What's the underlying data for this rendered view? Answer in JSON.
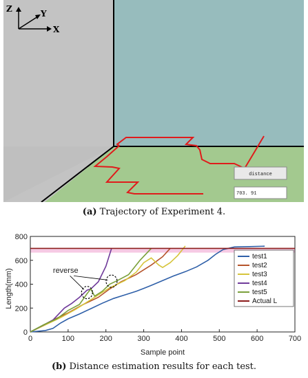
{
  "panel_a": {
    "axis_z": "Z",
    "axis_y": "Y",
    "axis_x": "X",
    "distance_button": "distance",
    "distance_value": "703. 91",
    "caption_label": "(a)",
    "caption_text": "Trajectory of Experiment 4."
  },
  "panel_b": {
    "caption_label": "(b)",
    "caption_text": "Distance estimation results for each test.",
    "annotation": "reverse"
  },
  "chart_data": {
    "type": "line",
    "title": "",
    "xlabel": "Sample point",
    "ylabel": "Length(mm)",
    "xlim": [
      0,
      700
    ],
    "ylim": [
      0,
      800
    ],
    "xticks": [
      "0",
      "100",
      "200",
      "300",
      "400",
      "500",
      "600",
      "700"
    ],
    "yticks": [
      "0",
      "200",
      "400",
      "600",
      "800"
    ],
    "grid": false,
    "legend_position": "right",
    "colors": {
      "test1": "#2e5fa8",
      "test2": "#b5532a",
      "test3": "#d6c43a",
      "test4": "#6f3a9a",
      "test5": "#7aa03a",
      "actual": "#8b1a1a"
    },
    "series": [
      {
        "name": "test1",
        "points": [
          [
            0,
            0
          ],
          [
            40,
            12
          ],
          [
            60,
            30
          ],
          [
            80,
            75
          ],
          [
            100,
            110
          ],
          [
            130,
            150
          ],
          [
            160,
            195
          ],
          [
            190,
            240
          ],
          [
            220,
            280
          ],
          [
            250,
            310
          ],
          [
            280,
            340
          ],
          [
            300,
            365
          ],
          [
            320,
            390
          ],
          [
            350,
            430
          ],
          [
            380,
            470
          ],
          [
            410,
            505
          ],
          [
            440,
            545
          ],
          [
            470,
            600
          ],
          [
            490,
            650
          ],
          [
            510,
            690
          ],
          [
            540,
            712
          ],
          [
            580,
            715
          ],
          [
            620,
            718
          ]
        ]
      },
      {
        "name": "test2",
        "points": [
          [
            0,
            0
          ],
          [
            30,
            50
          ],
          [
            60,
            100
          ],
          [
            100,
            160
          ],
          [
            140,
            230
          ],
          [
            180,
            290
          ],
          [
            210,
            360
          ],
          [
            240,
            420
          ],
          [
            280,
            480
          ],
          [
            300,
            520
          ],
          [
            320,
            560
          ],
          [
            350,
            630
          ],
          [
            370,
            700
          ]
        ]
      },
      {
        "name": "test3",
        "points": [
          [
            0,
            0
          ],
          [
            40,
            60
          ],
          [
            80,
            120
          ],
          [
            120,
            190
          ],
          [
            150,
            250
          ],
          [
            180,
            310
          ],
          [
            210,
            370
          ],
          [
            250,
            430
          ],
          [
            280,
            500
          ],
          [
            300,
            580
          ],
          [
            320,
            620
          ],
          [
            340,
            560
          ],
          [
            350,
            540
          ],
          [
            370,
            580
          ],
          [
            390,
            640
          ],
          [
            410,
            720
          ]
        ]
      },
      {
        "name": "test4",
        "points": [
          [
            0,
            0
          ],
          [
            30,
            50
          ],
          [
            60,
            100
          ],
          [
            90,
            200
          ],
          [
            110,
            240
          ],
          [
            130,
            290
          ],
          [
            150,
            350
          ],
          [
            160,
            360
          ],
          [
            180,
            420
          ],
          [
            200,
            550
          ],
          [
            215,
            700
          ]
        ]
      },
      {
        "name": "test5",
        "points": [
          [
            0,
            0
          ],
          [
            35,
            60
          ],
          [
            70,
            110
          ],
          [
            100,
            180
          ],
          [
            130,
            230
          ],
          [
            150,
            320
          ],
          [
            160,
            360
          ],
          [
            170,
            300
          ],
          [
            190,
            340
          ],
          [
            210,
            400
          ],
          [
            230,
            430
          ],
          [
            260,
            480
          ],
          [
            290,
            600
          ],
          [
            320,
            700
          ]
        ]
      },
      {
        "name": "Actual L",
        "points": [
          [
            0,
            700
          ],
          [
            700,
            700
          ]
        ]
      }
    ],
    "annotations": [
      {
        "text": "reverse",
        "circles": [
          [
            150,
            330
          ],
          [
            215,
            425
          ]
        ]
      }
    ]
  }
}
